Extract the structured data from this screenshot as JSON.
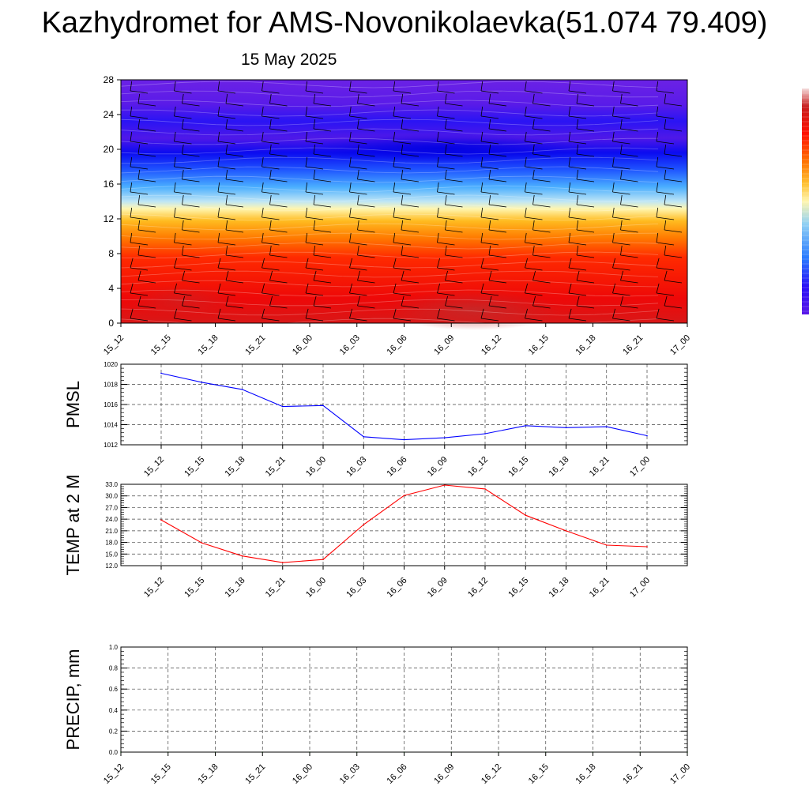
{
  "title": "Kazhydromet for AMS-Novonikolaevka(51.074 79.409)",
  "subtitle": "15 May 2025",
  "colors": {
    "pmsl_line": "#0000ff",
    "temp_line": "#ff0000",
    "precip_line": "#008000",
    "grid": "#444444"
  },
  "chart_data": [
    {
      "id": "cross-section",
      "type": "heatmap",
      "title": "",
      "x_tick_labels": [
        "15_12",
        "15_15",
        "15_18",
        "15_21",
        "16_00",
        "16_03",
        "16_06",
        "16_09",
        "16_12",
        "16_15",
        "16_18",
        "16_21",
        "17_00"
      ],
      "y_ticks": [
        0,
        4,
        8,
        12,
        16,
        20,
        24,
        28
      ],
      "ylim": [
        0,
        28
      ],
      "colorbar_colors": [
        "#5a17e8",
        "#3b10f4",
        "#1020ff",
        "#2a7bff",
        "#4ab3ff",
        "#a6dcf2",
        "#fff4a8",
        "#ffd040",
        "#ff9a00",
        "#ff5a00",
        "#ff1a00",
        "#e00000",
        "#c81e1e",
        "#f0d0d0"
      ],
      "overlay": "wind-barbs",
      "grid": false
    },
    {
      "id": "pmsl",
      "type": "line",
      "ylabel": "PMSL",
      "categories": [
        "15_12",
        "15_15",
        "15_18",
        "15_21",
        "16_00",
        "16_03",
        "16_06",
        "16_09",
        "16_12",
        "16_15",
        "16_18",
        "16_21",
        "17_00"
      ],
      "values": [
        1019.1,
        1018.2,
        1017.5,
        1015.8,
        1015.9,
        1012.8,
        1012.5,
        1012.7,
        1013.1,
        1013.9,
        1013.7,
        1013.8,
        1012.9
      ],
      "y_ticks": [
        1012,
        1014,
        1016,
        1018,
        1020
      ],
      "y_tick_labels": [
        "1012",
        "1014",
        "1016",
        "1018",
        "1020"
      ],
      "ylim": [
        1012,
        1020
      ],
      "grid": true
    },
    {
      "id": "temp",
      "type": "line",
      "ylabel": "TEMP at 2 M",
      "categories": [
        "15_12",
        "15_15",
        "15_18",
        "15_21",
        "16_00",
        "16_03",
        "16_06",
        "16_09",
        "16_12",
        "16_15",
        "16_18",
        "16_21",
        "17_00"
      ],
      "values": [
        23.8,
        17.9,
        14.5,
        12.8,
        13.6,
        22.6,
        30.1,
        32.8,
        31.8,
        25.0,
        21.0,
        17.3,
        16.9
      ],
      "y_ticks": [
        12,
        15,
        18,
        21,
        24,
        27,
        30,
        33
      ],
      "y_tick_labels": [
        "12.0",
        "15.0",
        "18.0",
        "21.0",
        "24.0",
        "27.0",
        "30.0",
        "33.0"
      ],
      "ylim": [
        12,
        33
      ],
      "grid": true
    },
    {
      "id": "precip",
      "type": "line",
      "ylabel": "PRECIP, mm",
      "x_tick_labels": [
        "15_12",
        "15_15",
        "15_18",
        "15_21",
        "16_00",
        "16_03",
        "16_06",
        "16_09",
        "16_12",
        "16_15",
        "16_18",
        "16_21",
        "17_00"
      ],
      "values": [
        0,
        0,
        0,
        0,
        0,
        0,
        0,
        0,
        0,
        0,
        0,
        0,
        0
      ],
      "y_ticks": [
        0,
        0.2,
        0.4,
        0.6,
        0.8,
        1.0
      ],
      "y_tick_labels": [
        "0.0",
        "0.2",
        "0.4",
        "0.6",
        "0.8",
        "1.0"
      ],
      "ylim": [
        0,
        1
      ],
      "grid": true
    }
  ]
}
